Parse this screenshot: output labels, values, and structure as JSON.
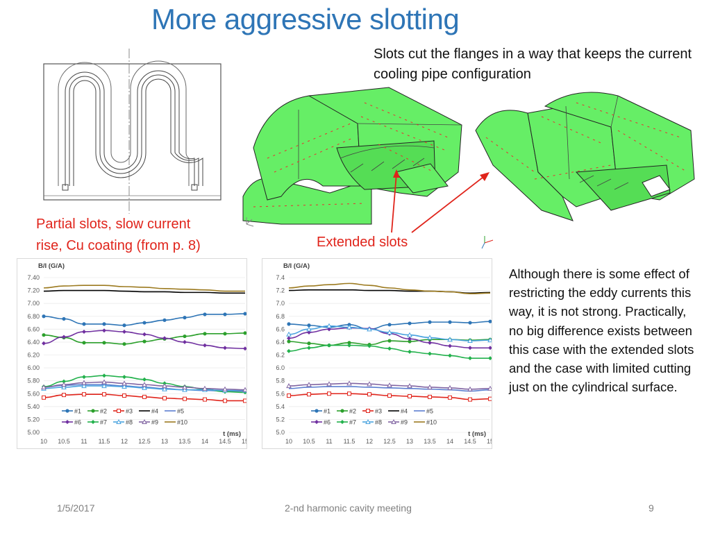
{
  "slide": {
    "title": "More aggressive slotting",
    "intro": "Slots cut the flanges in a way that keeps the current cooling pipe configuration",
    "caption_partial_line1": "Partial slots, slow current",
    "caption_partial_line2": "rise, Cu coating  (from p. 8)",
    "caption_extended": "Extended slots",
    "note": "Although there is some effect of restricting the eddy currents this way, it is not strong. Practically, no big difference exists between this case with the extended slots and the case with limited cutting just on the cylindrical surface.",
    "footer_date": "1/5/2017",
    "footer_event": "2-nd harmonic cavity meeting",
    "footer_page": "9"
  },
  "colors": {
    "title": "#2e75b6",
    "caption": "#e0241b",
    "model_green": "#66ee66",
    "#1": "#2e75b6",
    "#2": "#2ca02c",
    "#3": "#e0241b",
    "#4": "#000000",
    "#5": "#5b7fd0",
    "#6": "#7030a0",
    "#7": "#22b14c",
    "#8": "#4aa3df",
    "#9": "#8064a2",
    "#10": "#9c7a1f"
  },
  "chart_data": [
    {
      "type": "line",
      "ylabel": "B/I (G/A)",
      "xlabel": "t (ms)",
      "x": [
        10,
        10.5,
        11,
        11.5,
        12,
        12.5,
        13,
        13.5,
        14,
        14.5,
        15
      ],
      "x_ticks": [
        "10",
        "10.5",
        "11",
        "11.5",
        "12",
        "12.5",
        "13",
        "13.5",
        "14",
        "14.5",
        "15"
      ],
      "ylim": [
        5.0,
        7.4
      ],
      "y_ticks": [
        "5.00",
        "5.20",
        "5.40",
        "5.60",
        "5.80",
        "6.00",
        "6.20",
        "6.40",
        "6.60",
        "6.80",
        "7.00",
        "7.20",
        "7.40"
      ],
      "legend": "bottom-left",
      "series": [
        {
          "name": "#1",
          "x": [
            10,
            10.5,
            11,
            11.5,
            12,
            12.5,
            13,
            13.5,
            14,
            14.5,
            15
          ],
          "values": [
            6.8,
            6.76,
            6.68,
            6.68,
            6.66,
            6.7,
            6.74,
            6.78,
            6.83,
            6.83,
            6.84
          ]
        },
        {
          "name": "#2",
          "x": [
            10,
            10.5,
            11,
            11.5,
            12,
            12.5,
            13,
            13.5,
            14,
            14.5,
            15
          ],
          "values": [
            6.51,
            6.47,
            6.39,
            6.39,
            6.37,
            6.41,
            6.45,
            6.49,
            6.53,
            6.53,
            6.54
          ]
        },
        {
          "name": "#3",
          "x": [
            10,
            10.5,
            11,
            11.5,
            12,
            12.5,
            13,
            13.5,
            14,
            14.5,
            15
          ],
          "values": [
            5.54,
            5.58,
            5.59,
            5.59,
            5.57,
            5.55,
            5.53,
            5.52,
            5.51,
            5.49,
            5.49
          ]
        },
        {
          "name": "#4",
          "x": [
            10,
            10.5,
            11,
            11.5,
            12,
            12.5,
            13,
            13.5,
            14,
            14.5,
            15
          ],
          "values": [
            7.19,
            7.2,
            7.2,
            7.2,
            7.19,
            7.18,
            7.18,
            7.17,
            7.17,
            7.16,
            7.16
          ]
        },
        {
          "name": "#5",
          "x": [
            10,
            10.5,
            11,
            11.5,
            12,
            12.5,
            13,
            13.5,
            14,
            14.5,
            15
          ],
          "values": [
            5.7,
            5.73,
            5.74,
            5.74,
            5.72,
            5.7,
            5.68,
            5.66,
            5.65,
            5.64,
            5.64
          ]
        },
        {
          "name": "#6",
          "x": [
            10,
            10.5,
            11,
            11.5,
            12,
            12.5,
            13,
            13.5,
            14,
            14.5,
            15
          ],
          "values": [
            6.38,
            6.48,
            6.56,
            6.58,
            6.56,
            6.52,
            6.46,
            6.4,
            6.35,
            6.31,
            6.3
          ]
        },
        {
          "name": "#7",
          "x": [
            10,
            10.5,
            11,
            11.5,
            12,
            12.5,
            13,
            13.5,
            14,
            14.5,
            15
          ],
          "values": [
            5.71,
            5.79,
            5.86,
            5.88,
            5.86,
            5.82,
            5.76,
            5.71,
            5.67,
            5.63,
            5.62
          ]
        },
        {
          "name": "#8",
          "x": [
            10,
            10.5,
            11,
            11.5,
            12,
            12.5,
            13,
            13.5,
            14,
            14.5,
            15
          ],
          "values": [
            5.68,
            5.7,
            5.72,
            5.72,
            5.71,
            5.69,
            5.67,
            5.66,
            5.66,
            5.65,
            5.65
          ]
        },
        {
          "name": "#9",
          "x": [
            10,
            10.5,
            11,
            11.5,
            12,
            12.5,
            13,
            13.5,
            14,
            14.5,
            15
          ],
          "values": [
            5.7,
            5.74,
            5.77,
            5.78,
            5.76,
            5.74,
            5.72,
            5.7,
            5.68,
            5.67,
            5.66
          ]
        },
        {
          "name": "#10",
          "x": [
            10,
            10.5,
            11,
            11.5,
            12,
            12.5,
            13,
            13.5,
            14,
            14.5,
            15
          ],
          "values": [
            7.24,
            7.27,
            7.28,
            7.28,
            7.26,
            7.25,
            7.23,
            7.22,
            7.21,
            7.19,
            7.19
          ]
        }
      ]
    },
    {
      "type": "line",
      "ylabel": "B/I (G/A)",
      "xlabel": "t (ms)",
      "x": [
        10,
        10.5,
        11,
        11.5,
        12,
        12.5,
        13,
        13.5,
        14,
        14.5,
        15
      ],
      "x_ticks": [
        "10",
        "10.5",
        "11",
        "11.5",
        "12",
        "12.5",
        "13",
        "13.5",
        "14",
        "14.5",
        "15"
      ],
      "ylim": [
        5.0,
        7.4
      ],
      "y_ticks": [
        "5.0",
        "5.2",
        "5.4",
        "5.6",
        "5.8",
        "6.0",
        "6.2",
        "6.4",
        "6.6",
        "6.8",
        "7.0",
        "7.2",
        "7.4"
      ],
      "legend": "bottom-right",
      "series": [
        {
          "name": "#1",
          "x": [
            10,
            10.5,
            11,
            11.5,
            12,
            12.5,
            13,
            13.5,
            14,
            14.5,
            15
          ],
          "values": [
            6.68,
            6.66,
            6.63,
            6.67,
            6.6,
            6.67,
            6.69,
            6.71,
            6.71,
            6.7,
            6.72
          ]
        },
        {
          "name": "#2",
          "x": [
            10,
            10.5,
            11,
            11.5,
            12,
            12.5,
            13,
            13.5,
            14,
            14.5,
            15
          ],
          "values": [
            6.41,
            6.38,
            6.35,
            6.39,
            6.36,
            6.42,
            6.41,
            6.44,
            6.44,
            6.43,
            6.44
          ]
        },
        {
          "name": "#3",
          "x": [
            10,
            10.5,
            11,
            11.5,
            12,
            12.5,
            13,
            13.5,
            14,
            14.5,
            15
          ],
          "values": [
            5.57,
            5.59,
            5.6,
            5.6,
            5.59,
            5.57,
            5.56,
            5.55,
            5.54,
            5.51,
            5.52
          ]
        },
        {
          "name": "#4",
          "x": [
            10,
            10.5,
            11,
            11.5,
            12,
            12.5,
            13,
            13.5,
            14,
            14.5,
            15
          ],
          "values": [
            7.2,
            7.21,
            7.21,
            7.21,
            7.2,
            7.2,
            7.19,
            7.19,
            7.18,
            7.16,
            7.17
          ]
        },
        {
          "name": "#5",
          "x": [
            10,
            10.5,
            11,
            11.5,
            12,
            12.5,
            13,
            13.5,
            14,
            14.5,
            15
          ],
          "values": [
            5.68,
            5.7,
            5.71,
            5.71,
            5.7,
            5.69,
            5.68,
            5.67,
            5.66,
            5.64,
            5.66
          ]
        },
        {
          "name": "#6",
          "x": [
            10,
            10.5,
            11,
            11.5,
            12,
            12.5,
            13,
            13.5,
            14,
            14.5,
            15
          ],
          "values": [
            6.46,
            6.55,
            6.6,
            6.62,
            6.61,
            6.53,
            6.45,
            6.39,
            6.34,
            6.31,
            6.31
          ]
        },
        {
          "name": "#7",
          "x": [
            10,
            10.5,
            11,
            11.5,
            12,
            12.5,
            13,
            13.5,
            14,
            14.5,
            15
          ],
          "values": [
            6.26,
            6.31,
            6.35,
            6.35,
            6.34,
            6.3,
            6.25,
            6.22,
            6.19,
            6.15,
            6.15
          ]
        },
        {
          "name": "#8",
          "x": [
            10,
            10.5,
            11,
            11.5,
            12,
            12.5,
            13,
            13.5,
            14,
            14.5,
            15
          ],
          "values": [
            6.52,
            6.6,
            6.65,
            6.63,
            6.6,
            6.55,
            6.51,
            6.47,
            6.44,
            6.42,
            6.43
          ]
        },
        {
          "name": "#9",
          "x": [
            10,
            10.5,
            11,
            11.5,
            12,
            12.5,
            13,
            13.5,
            14,
            14.5,
            15
          ],
          "values": [
            5.72,
            5.74,
            5.75,
            5.76,
            5.75,
            5.73,
            5.72,
            5.7,
            5.69,
            5.67,
            5.68
          ]
        },
        {
          "name": "#10",
          "x": [
            10,
            10.5,
            11,
            11.5,
            12,
            12.5,
            13,
            13.5,
            14,
            14.5,
            15
          ],
          "values": [
            7.24,
            7.27,
            7.29,
            7.31,
            7.28,
            7.24,
            7.21,
            7.19,
            7.18,
            7.15,
            7.16
          ]
        }
      ]
    }
  ]
}
